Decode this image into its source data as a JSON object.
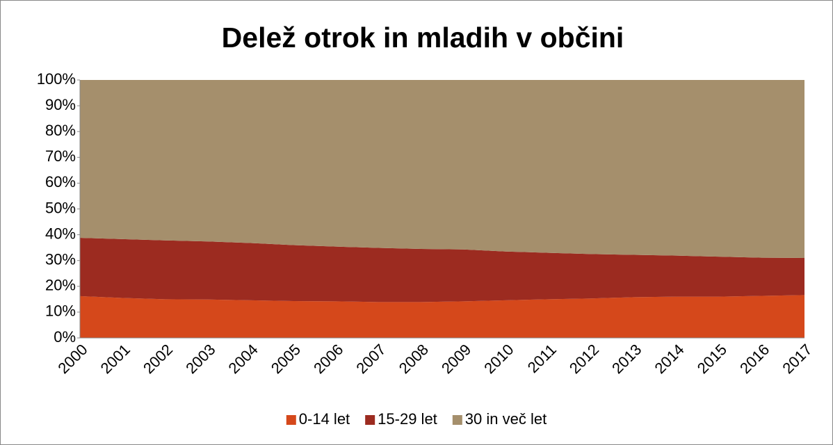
{
  "chart_data": {
    "type": "area",
    "stacked": true,
    "title": "Delež otrok in mladih v občini",
    "categories": [
      "2000",
      "2001",
      "2002",
      "2003",
      "2004",
      "2005",
      "2006",
      "2007",
      "2008",
      "2009",
      "2010",
      "2011",
      "2012",
      "2013",
      "2014",
      "2015",
      "2016",
      "2017"
    ],
    "series": [
      {
        "name": "0-14 let",
        "color": "#d5481b",
        "values": [
          16.2,
          15.5,
          15.0,
          14.9,
          14.6,
          14.3,
          14.2,
          13.9,
          13.9,
          14.2,
          14.6,
          15.0,
          15.3,
          15.8,
          16.0,
          16.0,
          16.3,
          16.6
        ]
      },
      {
        "name": "15-29 let",
        "color": "#9c2b20",
        "values": [
          22.6,
          22.8,
          22.8,
          22.5,
          22.2,
          21.7,
          21.2,
          21.0,
          20.6,
          20.1,
          18.9,
          18.0,
          17.2,
          16.4,
          15.9,
          15.5,
          14.8,
          14.4
        ]
      },
      {
        "name": "30 in več let",
        "color": "#a58f6c",
        "values": [
          61.2,
          61.7,
          62.2,
          62.6,
          63.2,
          64.0,
          64.6,
          65.1,
          65.5,
          65.7,
          66.5,
          67.0,
          67.5,
          67.8,
          68.1,
          68.5,
          68.9,
          69.0
        ]
      }
    ],
    "ylim": [
      0,
      100
    ],
    "yticks": [
      {
        "value": 0,
        "label": "0%"
      },
      {
        "value": 10,
        "label": "10%"
      },
      {
        "value": 20,
        "label": "20%"
      },
      {
        "value": 30,
        "label": "30%"
      },
      {
        "value": 40,
        "label": "40%"
      },
      {
        "value": 50,
        "label": "50%"
      },
      {
        "value": 60,
        "label": "60%"
      },
      {
        "value": 70,
        "label": "70%"
      },
      {
        "value": 80,
        "label": "80%"
      },
      {
        "value": 90,
        "label": "90%"
      },
      {
        "value": 100,
        "label": "100%"
      }
    ],
    "legend": "bottom"
  }
}
